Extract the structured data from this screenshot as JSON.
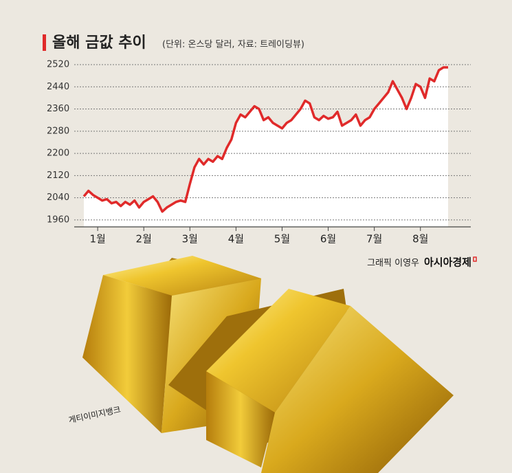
{
  "chart_data": {
    "type": "line",
    "title": "올해 금값 추이",
    "subtitle": "(단위:  온스당 달러, 자료: 트레이딩뷰)",
    "credit": "그래픽 이영우",
    "publisher": "아시아경제",
    "photo_credit": "게티이미지뱅크",
    "categories": [
      null,
      null,
      null,
      "1월",
      null,
      null,
      null,
      null,
      null,
      null,
      null,
      null,
      null,
      "2월",
      null,
      null,
      null,
      null,
      null,
      null,
      null,
      null,
      null,
      "3월",
      null,
      null,
      null,
      null,
      null,
      null,
      null,
      null,
      null,
      "4월",
      null,
      null,
      null,
      null,
      null,
      null,
      null,
      null,
      null,
      "5월",
      null,
      null,
      null,
      null,
      null,
      null,
      null,
      null,
      null,
      "6월",
      null,
      null,
      null,
      null,
      null,
      null,
      null,
      null,
      null,
      "7월",
      null,
      null,
      null,
      null,
      null,
      null,
      null,
      null,
      null,
      "8월",
      null,
      null,
      null,
      null,
      null,
      null
    ],
    "series": [
      {
        "name": "금값",
        "color": "#e02a2a",
        "values": [
          2045,
          2065,
          2050,
          2040,
          2030,
          2035,
          2020,
          2025,
          2010,
          2025,
          2015,
          2030,
          2005,
          2025,
          2035,
          2045,
          2025,
          1990,
          2005,
          2015,
          2025,
          2030,
          2025,
          2090,
          2150,
          2180,
          2160,
          2180,
          2170,
          2190,
          2180,
          2220,
          2250,
          2310,
          2340,
          2330,
          2350,
          2370,
          2360,
          2320,
          2330,
          2310,
          2300,
          2290,
          2310,
          2320,
          2340,
          2360,
          2390,
          2380,
          2330,
          2320,
          2335,
          2325,
          2330,
          2350,
          2300,
          2310,
          2320,
          2340,
          2300,
          2320,
          2330,
          2360,
          2380,
          2400,
          2420,
          2460,
          2430,
          2400,
          2360,
          2400,
          2450,
          2440,
          2400,
          2470,
          2460,
          2500,
          2510,
          2510
        ]
      }
    ],
    "ylim": [
      1935,
      2520
    ],
    "yticks": [
      1960,
      2040,
      2120,
      2200,
      2280,
      2360,
      2440,
      2520
    ],
    "grid": true
  }
}
